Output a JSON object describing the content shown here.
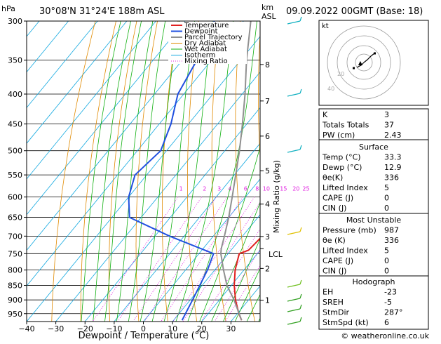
{
  "header": {
    "hpa_unit": "hPa",
    "location": "30°08'N  31°24'E  188m  ASL",
    "km_unit": "km",
    "asl_unit": "ASL",
    "datetime": "09.09.2022  00GMT  (Base: 18)"
  },
  "chart_data": {
    "type": "skew-t",
    "xlabel": "Dewpoint / Temperature (°C)",
    "right_axis_label": "Mixing Ratio (g/kg)",
    "temperature_ticks": [
      -40,
      -30,
      -20,
      -10,
      0,
      10,
      20,
      30
    ],
    "pressure_ticks": [
      300,
      350,
      400,
      450,
      500,
      550,
      600,
      650,
      700,
      750,
      800,
      850,
      900,
      950
    ],
    "km_ticks": [
      {
        "label": "1",
        "p": 901
      },
      {
        "label": "2",
        "p": 795
      },
      {
        "label": "3",
        "p": 701
      },
      {
        "label": "4",
        "p": 617
      },
      {
        "label": "5",
        "p": 541
      },
      {
        "label": "6",
        "p": 472
      },
      {
        "label": "7",
        "p": 411
      },
      {
        "label": "8",
        "p": 356
      }
    ],
    "lcl": {
      "label": "LCL",
      "p": 735
    },
    "mixing_ratio_labels": [
      "1",
      "2",
      "3",
      "4",
      "6",
      "8",
      "10",
      "15",
      "20",
      "25"
    ],
    "legend": [
      "Temperature",
      "Dewpoint",
      "Parcel Trajectory",
      "Dry Adiabat",
      "Wet Adiabat",
      "Isotherm",
      "Mixing Ratio"
    ],
    "series": [
      {
        "name": "Temperature",
        "color": "#e02020",
        "points": [
          [
            975,
            33.3
          ],
          [
            950,
            30.5
          ],
          [
            900,
            25.5
          ],
          [
            850,
            21
          ],
          [
            800,
            17
          ],
          [
            750,
            13.8
          ],
          [
            740,
            16
          ],
          [
            700,
            16.8
          ],
          [
            650,
            14.5
          ],
          [
            600,
            10
          ],
          [
            550,
            4.5
          ],
          [
            500,
            -1.5
          ],
          [
            450,
            -8
          ],
          [
            400,
            -15
          ],
          [
            350,
            -24
          ],
          [
            300,
            -34
          ]
        ]
      },
      {
        "name": "Dewpoint",
        "color": "#2050e0",
        "points": [
          [
            975,
            12.9
          ],
          [
            950,
            12.2
          ],
          [
            900,
            10.8
          ],
          [
            850,
            9.2
          ],
          [
            800,
            7.5
          ],
          [
            750,
            5
          ],
          [
            700,
            -15
          ],
          [
            650,
            -34
          ],
          [
            600,
            -40
          ],
          [
            550,
            -44
          ],
          [
            500,
            -42
          ],
          [
            450,
            -46
          ],
          [
            400,
            -52
          ],
          [
            350,
            -55
          ],
          [
            300,
            -60
          ]
        ]
      },
      {
        "name": "Parcel Trajectory",
        "color": "#909090",
        "points": [
          [
            975,
            33.3
          ],
          [
            900,
            25
          ],
          [
            850,
            18.5
          ],
          [
            800,
            13
          ],
          [
            750,
            7.5
          ],
          [
            735,
            6.2
          ],
          [
            700,
            3.8
          ],
          [
            650,
            0
          ],
          [
            600,
            -4.5
          ],
          [
            550,
            -9.5
          ],
          [
            500,
            -15
          ],
          [
            450,
            -21.5
          ],
          [
            400,
            -29
          ],
          [
            350,
            -38
          ],
          [
            300,
            -47.5
          ]
        ]
      }
    ]
  },
  "hodograph": {
    "label": "kt",
    "ring_labels": [
      "20",
      "40"
    ]
  },
  "indices": {
    "rows": [
      {
        "label": "K",
        "value": "3"
      },
      {
        "label": "Totals Totals",
        "value": "37"
      },
      {
        "label": "PW (cm)",
        "value": "2.43"
      }
    ]
  },
  "surface": {
    "title": "Surface",
    "rows": [
      {
        "label": "Temp (°C)",
        "value": "33.3"
      },
      {
        "label": "Dewp (°C)",
        "value": "12.9"
      },
      {
        "label": "θe(K)",
        "value": "336"
      },
      {
        "label": "Lifted Index",
        "value": "5"
      },
      {
        "label": "CAPE (J)",
        "value": "0"
      },
      {
        "label": "CIN (J)",
        "value": "0"
      }
    ]
  },
  "most_unstable": {
    "title": "Most Unstable",
    "rows": [
      {
        "label": "Pressure (mb)",
        "value": "987"
      },
      {
        "label": "θe (K)",
        "value": "336"
      },
      {
        "label": "Lifted Index",
        "value": "5"
      },
      {
        "label": "CAPE (J)",
        "value": "0"
      },
      {
        "label": "CIN (J)",
        "value": "0"
      }
    ]
  },
  "hodograph_table": {
    "title": "Hodograph",
    "rows": [
      {
        "label": "EH",
        "value": "-23"
      },
      {
        "label": "SREH",
        "value": "-5"
      },
      {
        "label": "StmDir",
        "value": "287°"
      },
      {
        "label": "StmSpd (kt)",
        "value": "6"
      }
    ]
  },
  "footer": {
    "copyright": "© weatheronline.co.uk"
  }
}
